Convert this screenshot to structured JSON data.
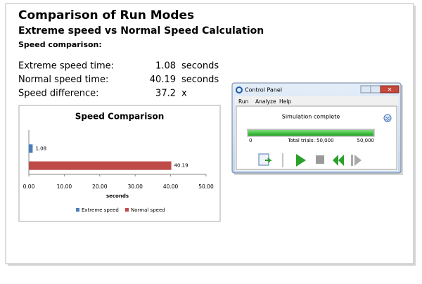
{
  "header": {
    "title": "Comparison of Run Modes",
    "subtitle": "Extreme speed vs Normal Speed Calculation",
    "section": "Speed comparison:"
  },
  "metrics": [
    {
      "label": "Extreme speed time:",
      "value": 1.08,
      "unit": "seconds"
    },
    {
      "label": "Normal speed time:",
      "value": 40.19,
      "unit": "seconds"
    },
    {
      "label": "Speed difference:",
      "value": 37.2,
      "unit": "x"
    }
  ],
  "chart_data": {
    "type": "bar",
    "orientation": "horizontal",
    "title": "Speed Comparison",
    "x_label": "seconds",
    "categories": [
      null
    ],
    "series": [
      {
        "name": "Extreme speed",
        "color": "#4a7ebb",
        "values": [
          1.08
        ]
      },
      {
        "name": "Normal speed",
        "color": "#be4b48",
        "values": [
          40.19
        ]
      }
    ],
    "xlim": [
      0,
      50
    ],
    "xticks": [
      {
        "value": 0,
        "label": "0.00"
      },
      {
        "value": 10,
        "label": "10.00"
      },
      {
        "value": 20,
        "label": "20.00"
      },
      {
        "value": 30,
        "label": "30.00"
      },
      {
        "value": 40,
        "label": "40.00"
      },
      {
        "value": 50,
        "label": "50.00"
      }
    ],
    "legend": "bottom"
  },
  "control_panel": {
    "title": "Control Panel",
    "menu": [
      "Run",
      "Analyze",
      "Help"
    ],
    "status": "Simulation complete",
    "progress_min": "0",
    "progress_total": "Total trials: 50,000",
    "progress_max": "50,000"
  }
}
